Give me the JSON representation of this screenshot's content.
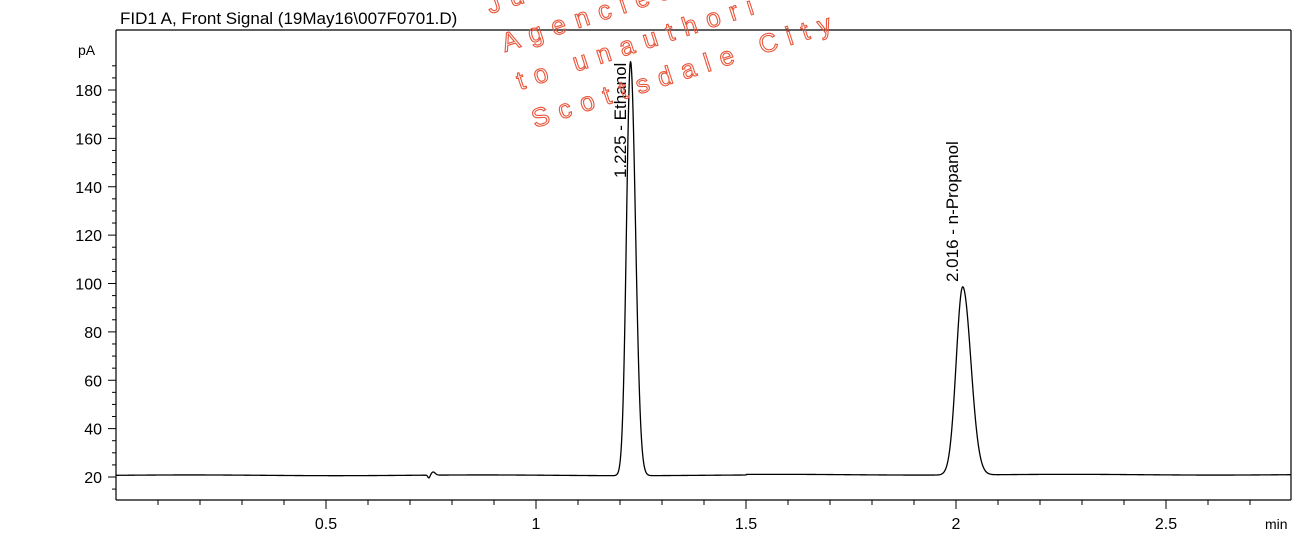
{
  "chart_data": {
    "type": "line",
    "title": "FID1 A, Front Signal (19May16\\007F0701.D)",
    "xlabel": "min",
    "ylabel": "pA",
    "xlim": [
      0,
      2.8
    ],
    "ylim": [
      10,
      195
    ],
    "x_ticks": [
      0.5,
      1,
      1.5,
      2,
      2.5
    ],
    "x_tick_labels": [
      "0.5",
      "1",
      "1.5",
      "2",
      "2.5"
    ],
    "y_ticks": [
      20,
      40,
      60,
      80,
      100,
      120,
      140,
      160,
      180
    ],
    "y_tick_labels": [
      "20",
      "40",
      "60",
      "80",
      "100",
      "120",
      "140",
      "160",
      "180"
    ],
    "grid": false,
    "baseline": 20.7,
    "series": [
      {
        "peaks": [
          {
            "retention_time": 0.755,
            "height": 22.0
          },
          {
            "retention_time": 1.225,
            "height": 192.0,
            "label": "1.225 - Ethanol"
          },
          {
            "retention_time": 2.016,
            "height": 98.5,
            "label": "2.016 - n-Propanol"
          }
        ]
      }
    ]
  },
  "watermark": {
    "lines": [
      "Justice",
      "Agencies",
      "to unauthori",
      "Scottsdale City"
    ],
    "color": "#e8553a"
  }
}
